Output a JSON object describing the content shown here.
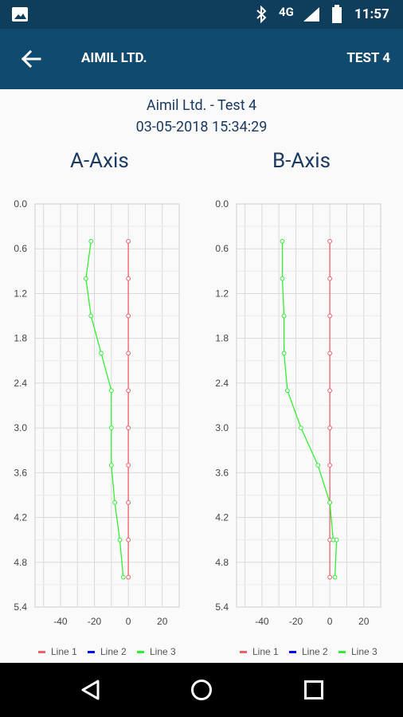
{
  "status_bar": {
    "network": "4G",
    "time": "11:57",
    "icons": [
      "image-icon",
      "bluetooth-icon",
      "signal-icon",
      "battery-icon"
    ]
  },
  "app_bar": {
    "back_icon": "arrow-left-icon",
    "title": "AIMIL LTD.",
    "action": "TEST 4"
  },
  "header": {
    "title": "Aimil Ltd. - Test 4",
    "datetime": "03-05-2018 15:34:29"
  },
  "colors": {
    "status_bar": "#0f3d5c",
    "app_bar": "#114a6f",
    "line1": "#f0606b",
    "line2": "#0000ff",
    "line3": "#33ee33",
    "title_text": "#1b3a63"
  },
  "chart_data": [
    {
      "type": "line",
      "title": "A-Axis",
      "orientation": "vertical-depth",
      "y_ticks": [
        "0.0",
        "0.6",
        "1.2",
        "1.8",
        "2.4",
        "3.0",
        "3.6",
        "4.2",
        "4.8",
        "5.4"
      ],
      "x_ticks": [
        "-40",
        "-20",
        "0",
        "20"
      ],
      "ylim": [
        0,
        5.4
      ],
      "xlim": [
        -55,
        30
      ],
      "series": [
        {
          "name": "Line 1",
          "color": "#f0606b",
          "points": [
            [
              0,
              0.5
            ],
            [
              0,
              1.0
            ],
            [
              0,
              1.5
            ],
            [
              0,
              2.0
            ],
            [
              0,
              2.5
            ],
            [
              0,
              3.0
            ],
            [
              0,
              3.5
            ],
            [
              0,
              4.0
            ],
            [
              0,
              4.5
            ],
            [
              0,
              5.0
            ]
          ]
        },
        {
          "name": "Line 2",
          "color": "#0000ff",
          "points": []
        },
        {
          "name": "Line 3",
          "color": "#33ee33",
          "points": [
            [
              -22,
              0.5
            ],
            [
              -25,
              1.0
            ],
            [
              -22,
              1.5
            ],
            [
              -16,
              2.0
            ],
            [
              -10,
              2.5
            ],
            [
              -10,
              3.0
            ],
            [
              -10,
              3.5
            ],
            [
              -8,
              4.0
            ],
            [
              -5,
              4.5
            ],
            [
              -3,
              5.0
            ]
          ]
        }
      ],
      "legend": [
        "Line 1",
        "Line 2",
        "Line 3"
      ],
      "grid": true
    },
    {
      "type": "line",
      "title": "B-Axis",
      "orientation": "vertical-depth",
      "y_ticks": [
        "0.0",
        "0.6",
        "1.2",
        "1.8",
        "2.4",
        "3.0",
        "3.6",
        "4.2",
        "4.8",
        "5.4"
      ],
      "x_ticks": [
        "-40",
        "-20",
        "0",
        "20"
      ],
      "ylim": [
        0,
        5.4
      ],
      "xlim": [
        -55,
        30
      ],
      "series": [
        {
          "name": "Line 1",
          "color": "#f0606b",
          "points": [
            [
              0,
              0.5
            ],
            [
              0,
              1.0
            ],
            [
              0,
              1.5
            ],
            [
              0,
              2.0
            ],
            [
              0,
              2.5
            ],
            [
              0,
              3.0
            ],
            [
              0,
              3.5
            ],
            [
              0,
              4.0
            ],
            [
              0,
              4.5
            ],
            [
              0,
              5.0
            ]
          ]
        },
        {
          "name": "Line 2",
          "color": "#0000ff",
          "points": []
        },
        {
          "name": "Line 3",
          "color": "#33ee33",
          "points": [
            [
              -28,
              0.5
            ],
            [
              -28,
              1.0
            ],
            [
              -27,
              1.5
            ],
            [
              -27,
              2.0
            ],
            [
              -25,
              2.5
            ],
            [
              -17,
              3.0
            ],
            [
              -7,
              3.5
            ],
            [
              0,
              4.0
            ],
            [
              2,
              4.5
            ],
            [
              4,
              4.5
            ],
            [
              3,
              5.0
            ]
          ]
        }
      ],
      "legend": [
        "Line 1",
        "Line 2",
        "Line 3"
      ],
      "grid": true
    }
  ],
  "nav_bar": {
    "buttons": [
      "back-triangle-icon",
      "home-circle-icon",
      "recents-square-icon"
    ]
  }
}
